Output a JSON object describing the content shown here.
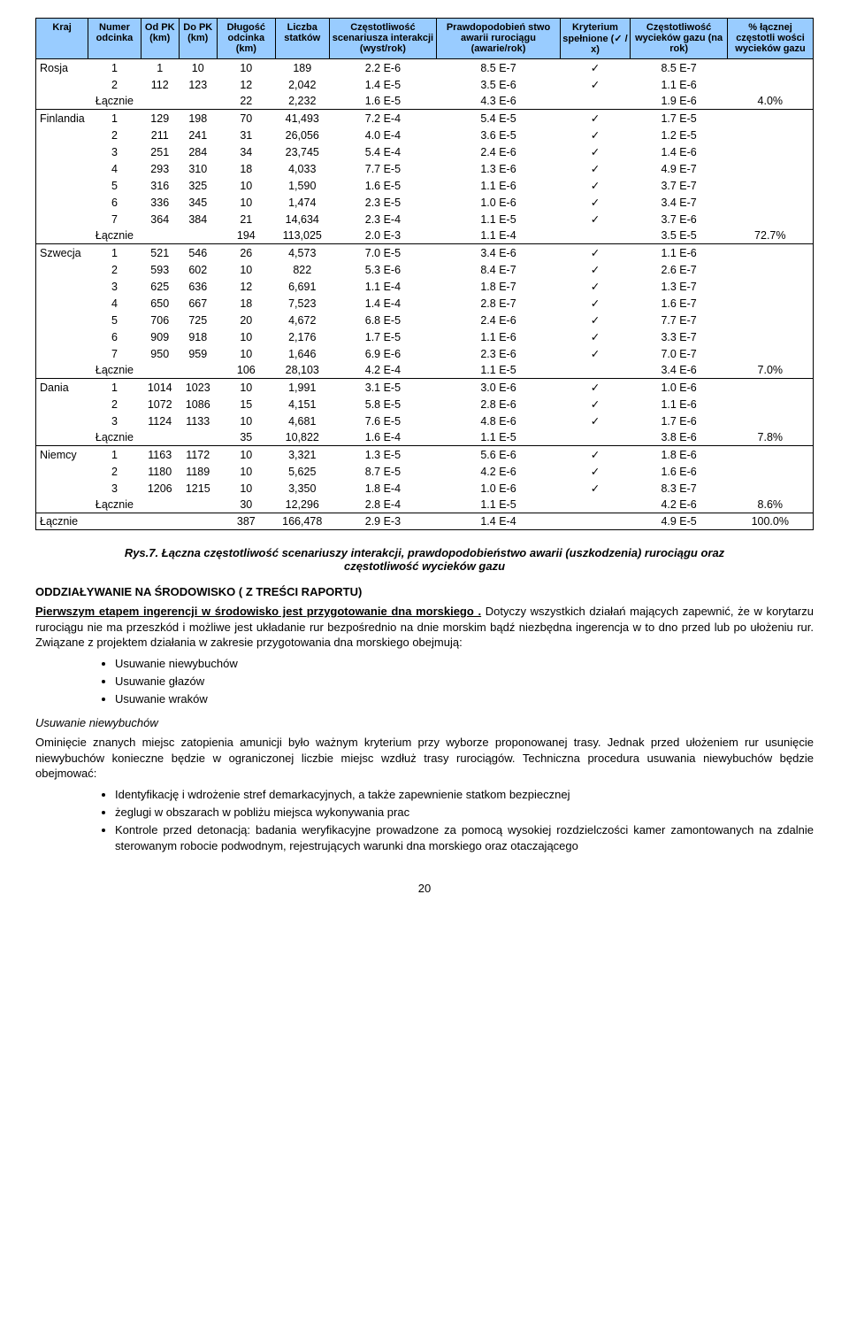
{
  "table": {
    "header_bg": "#99ccff",
    "columns": [
      "Kraj",
      "Numer odcinka",
      "Od PK (km)",
      "Do PK (km)",
      "Długość odcinka (km)",
      "Liczba statków",
      "Częstotliwość scenariusza interakcji (wyst/rok)",
      "Prawdopodobień stwo awarii rurociągu (awarie/rok)",
      "Kryterium spełnione (✓ / x)",
      "Częstotliwość wycieków gazu (na rok)",
      "% łącznej częstotli wości wycieków gazu"
    ],
    "groups": [
      {
        "country": "Rosja",
        "rows": [
          [
            "1",
            "1",
            "10",
            "10",
            "189",
            "2.2 E-6",
            "8.5 E-7",
            "✓",
            "8.5 E-7",
            ""
          ],
          [
            "2",
            "112",
            "123",
            "12",
            "2,042",
            "1.4 E-5",
            "3.5 E-6",
            "✓",
            "1.1 E-6",
            ""
          ]
        ],
        "subtotal": [
          "Łącznie",
          "",
          "",
          "22",
          "2,232",
          "1.6 E-5",
          "4.3 E-6",
          "",
          "1.9 E-6",
          "4.0%"
        ]
      },
      {
        "country": "Finlandia",
        "rows": [
          [
            "1",
            "129",
            "198",
            "70",
            "41,493",
            "7.2 E-4",
            "5.4 E-5",
            "✓",
            "1.7 E-5",
            ""
          ],
          [
            "2",
            "211",
            "241",
            "31",
            "26,056",
            "4.0 E-4",
            "3.6 E-5",
            "✓",
            "1.2 E-5",
            ""
          ],
          [
            "3",
            "251",
            "284",
            "34",
            "23,745",
            "5.4 E-4",
            "2.4 E-6",
            "✓",
            "1.4 E-6",
            ""
          ],
          [
            "4",
            "293",
            "310",
            "18",
            "4,033",
            "7.7 E-5",
            "1.3 E-6",
            "✓",
            "4.9 E-7",
            ""
          ],
          [
            "5",
            "316",
            "325",
            "10",
            "1,590",
            "1.6 E-5",
            "1.1 E-6",
            "✓",
            "3.7 E-7",
            ""
          ],
          [
            "6",
            "336",
            "345",
            "10",
            "1,474",
            "2.3 E-5",
            "1.0 E-6",
            "✓",
            "3.4 E-7",
            ""
          ],
          [
            "7",
            "364",
            "384",
            "21",
            "14,634",
            "2.3 E-4",
            "1.1 E-5",
            "✓",
            "3.7 E-6",
            ""
          ]
        ],
        "subtotal": [
          "Łącznie",
          "",
          "",
          "194",
          "113,025",
          "2.0 E-3",
          "1.1 E-4",
          "",
          "3.5 E-5",
          "72.7%"
        ]
      },
      {
        "country": "Szwecja",
        "rows": [
          [
            "1",
            "521",
            "546",
            "26",
            "4,573",
            "7.0 E-5",
            "3.4 E-6",
            "✓",
            "1.1 E-6",
            ""
          ],
          [
            "2",
            "593",
            "602",
            "10",
            "822",
            "5.3 E-6",
            "8.4 E-7",
            "✓",
            "2.6 E-7",
            ""
          ],
          [
            "3",
            "625",
            "636",
            "12",
            "6,691",
            "1.1 E-4",
            "1.8 E-7",
            "✓",
            "1.3 E-7",
            ""
          ],
          [
            "4",
            "650",
            "667",
            "18",
            "7,523",
            "1.4 E-4",
            "2.8 E-7",
            "✓",
            "1.6 E-7",
            ""
          ],
          [
            "5",
            "706",
            "725",
            "20",
            "4,672",
            "6.8 E-5",
            "2.4 E-6",
            "✓",
            "7.7 E-7",
            ""
          ],
          [
            "6",
            "909",
            "918",
            "10",
            "2,176",
            "1.7 E-5",
            "1.1 E-6",
            "✓",
            "3.3 E-7",
            ""
          ],
          [
            "7",
            "950",
            "959",
            "10",
            "1,646",
            "6.9 E-6",
            "2.3 E-6",
            "✓",
            "7.0 E-7",
            ""
          ]
        ],
        "subtotal": [
          "Łącznie",
          "",
          "",
          "106",
          "28,103",
          "4.2 E-4",
          "1.1 E-5",
          "",
          "3.4 E-6",
          "7.0%"
        ]
      },
      {
        "country": "Dania",
        "rows": [
          [
            "1",
            "1014",
            "1023",
            "10",
            "1,991",
            "3.1 E-5",
            "3.0 E-6",
            "✓",
            "1.0 E-6",
            ""
          ],
          [
            "2",
            "1072",
            "1086",
            "15",
            "4,151",
            "5.8 E-5",
            "2.8 E-6",
            "✓",
            "1.1 E-6",
            ""
          ],
          [
            "3",
            "1124",
            "1133",
            "10",
            "4,681",
            "7.6 E-5",
            "4.8 E-6",
            "✓",
            "1.7 E-6",
            ""
          ]
        ],
        "subtotal": [
          "Łącznie",
          "",
          "",
          "35",
          "10,822",
          "1.6 E-4",
          "1.1 E-5",
          "",
          "3.8 E-6",
          "7.8%"
        ]
      },
      {
        "country": "Niemcy",
        "rows": [
          [
            "1",
            "1163",
            "1172",
            "10",
            "3,321",
            "1.3 E-5",
            "5.6 E-6",
            "✓",
            "1.8 E-6",
            ""
          ],
          [
            "2",
            "1180",
            "1189",
            "10",
            "5,625",
            "8.7 E-5",
            "4.2 E-6",
            "✓",
            "1.6 E-6",
            ""
          ],
          [
            "3",
            "1206",
            "1215",
            "10",
            "3,350",
            "1.8 E-4",
            "1.0 E-6",
            "✓",
            "8.3 E-7",
            ""
          ]
        ],
        "subtotal": [
          "Łącznie",
          "",
          "",
          "30",
          "12,296",
          "2.8 E-4",
          "1.1 E-5",
          "",
          "4.2 E-6",
          "8.6%"
        ]
      }
    ],
    "grandtotal": [
      "Łącznie",
      "",
      "",
      "",
      "387",
      "166,478",
      "2.9 E-3",
      "1.4 E-4",
      "",
      "4.9 E-5",
      "100.0%"
    ]
  },
  "fig": {
    "label": "Rys.7.",
    "caption_line1": "Łączna częstotliwość scenariuszy interakcji, prawdopodobieństwo awarii (uszkodzenia) rurociągu oraz częstotliwość wycieków gazu"
  },
  "section": {
    "title": "ODDZIAŁYWANIE NA ŚRODOWISKO  ( Z TREŚCI RAPORTU)",
    "intro_lead": "Pierwszym etapem ingerencji w środowisko jest ",
    "intro_underline": "przygotowanie dna morskiego .",
    "intro_rest": " Dotyczy wszystkich działań mających zapewnić, że w korytarzu rurociągu nie ma przeszkód i możliwe jest układanie rur bezpośrednio na dnie morskim bądź niezbędna ingerencja w to dno przed lub po ułożeniu rur. Związane z projektem działania w zakresie przygotowania dna morskiego obejmują:",
    "bullets_prep": [
      "Usuwanie niewybuchów",
      "Usuwanie głazów",
      "Usuwanie wraków"
    ],
    "sub_heading": "Usuwanie niewybuchów",
    "para_sub": "Ominięcie znanych miejsc zatopienia amunicji było ważnym kryterium przy wyborze proponowanej trasy. Jednak przed ułożeniem rur usunięcie niewybuchów konieczne będzie w ograniczonej liczbie miejsc wzdłuż trasy rurociągów. Techniczna procedura usuwania niewybuchów będzie obejmować:",
    "bullets_sub": [
      "Identyfikację i wdrożenie stref demarkacyjnych, a także zapewnienie statkom bezpiecznej",
      "żeglugi w obszarach w pobliżu miejsca wykonywania prac",
      "Kontrole przed detonacją: badania weryfikacyjne prowadzone za pomocą wysokiej rozdzielczości kamer zamontowanych na zdalnie sterowanym robocie podwodnym, rejestrujących warunki dna morskiego oraz otaczającego"
    ]
  },
  "pagenum": "20"
}
